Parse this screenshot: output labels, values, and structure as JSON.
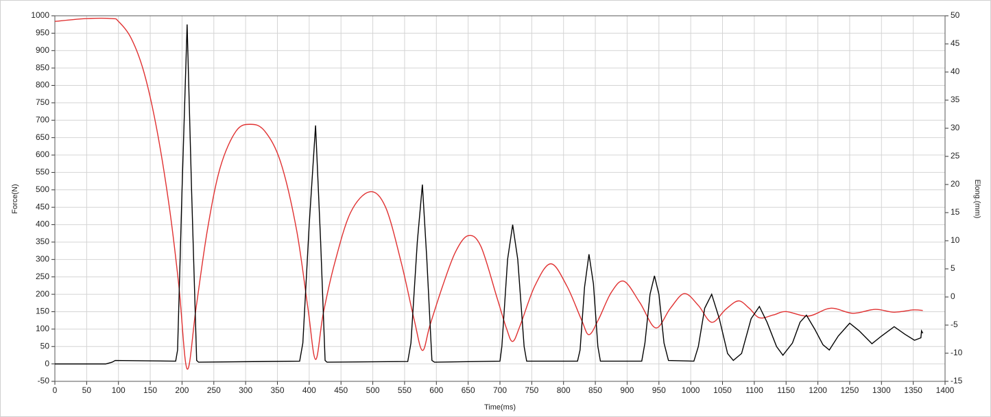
{
  "chart_data": {
    "type": "line",
    "xlabel": "Time(ms)",
    "ylabel": "Force(N)",
    "y2label": "Elong.(mm)",
    "xlim": [
      0,
      1400
    ],
    "ylim": [
      -50,
      1000
    ],
    "y2lim": [
      -15,
      50
    ],
    "grid": true,
    "xticks": [
      0,
      50,
      100,
      150,
      200,
      250,
      300,
      350,
      400,
      450,
      500,
      550,
      600,
      650,
      700,
      750,
      800,
      850,
      900,
      950,
      1000,
      1050,
      1100,
      1150,
      1200,
      1250,
      1300,
      1350,
      1400
    ],
    "yticks": [
      -50,
      0,
      50,
      100,
      150,
      200,
      250,
      300,
      350,
      400,
      450,
      500,
      550,
      600,
      650,
      700,
      750,
      800,
      850,
      900,
      950,
      1000
    ],
    "y2ticks": [
      -15,
      -10,
      -5,
      0,
      5,
      10,
      15,
      20,
      25,
      30,
      35,
      40,
      45,
      50
    ],
    "series": [
      {
        "color": "#e03030",
        "axis": "y2",
        "smooth": true,
        "x": [
          0,
          50,
          90,
          100,
          120,
          140,
          160,
          180,
          195,
          208,
          222,
          240,
          260,
          285,
          308,
          330,
          355,
          380,
          398,
          410,
          422,
          440,
          465,
          495,
          520,
          545,
          565,
          578,
          590,
          610,
          630,
          650,
          670,
          695,
          710,
          720,
          732,
          755,
          780,
          805,
          828,
          840,
          855,
          875,
          895,
          920,
          945,
          968,
          990,
          1012,
          1033,
          1055,
          1075,
          1092,
          1108,
          1130,
          1150,
          1185,
          1220,
          1255,
          1290,
          1320,
          1350,
          1365
        ],
        "values": [
          49,
          49.5,
          49.5,
          49,
          46,
          40,
          30,
          16,
          2,
          -12.8,
          -2,
          12,
          23,
          29.5,
          30.7,
          29.5,
          24,
          12,
          -2,
          -11.1,
          -3,
          6,
          15,
          18.7,
          16,
          6,
          -4,
          -9.5,
          -5,
          2,
          8,
          10.9,
          9,
          0,
          -5.5,
          -7.9,
          -5,
          2,
          5.9,
          2,
          -4,
          -6.7,
          -4,
          0.8,
          2.8,
          -1,
          -5.5,
          -2,
          0.6,
          -1.5,
          -4.5,
          -2.2,
          -0.7,
          -2,
          -3.7,
          -3.2,
          -2.6,
          -3.4,
          -2,
          -2.9,
          -2.2,
          -2.7,
          -2.3,
          -2.4
        ]
      },
      {
        "color": "#000000",
        "axis": "y",
        "x": [
          0,
          80,
          90,
          95,
          190,
          193,
          200,
          208,
          215,
          223,
          226,
          385,
          390,
          400,
          410,
          418,
          425,
          428,
          555,
          560,
          570,
          578,
          585,
          593,
          597,
          700,
          703,
          712,
          720,
          728,
          738,
          742,
          822,
          826,
          833,
          840,
          847,
          854,
          858,
          923,
          928,
          936,
          943,
          950,
          958,
          965,
          1005,
          1012,
          1022,
          1033,
          1045,
          1058,
          1067,
          1080,
          1095,
          1108,
          1120,
          1135,
          1145,
          1160,
          1172,
          1182,
          1195,
          1208,
          1218,
          1232,
          1250,
          1265,
          1285,
          1300,
          1320,
          1337,
          1352,
          1362,
          1363,
          1365
        ],
        "values": [
          0,
          0,
          5,
          10,
          8,
          40,
          500,
          975,
          500,
          10,
          5,
          8,
          60,
          400,
          685,
          350,
          10,
          5,
          7,
          60,
          350,
          515,
          300,
          10,
          5,
          8,
          50,
          300,
          400,
          300,
          50,
          8,
          8,
          40,
          220,
          315,
          230,
          50,
          8,
          8,
          60,
          200,
          253,
          200,
          60,
          10,
          8,
          50,
          160,
          200,
          130,
          30,
          10,
          30,
          130,
          165,
          120,
          50,
          25,
          60,
          120,
          140,
          100,
          55,
          40,
          80,
          117,
          95,
          58,
          80,
          107,
          85,
          68,
          75,
          95,
          88
        ]
      }
    ]
  }
}
